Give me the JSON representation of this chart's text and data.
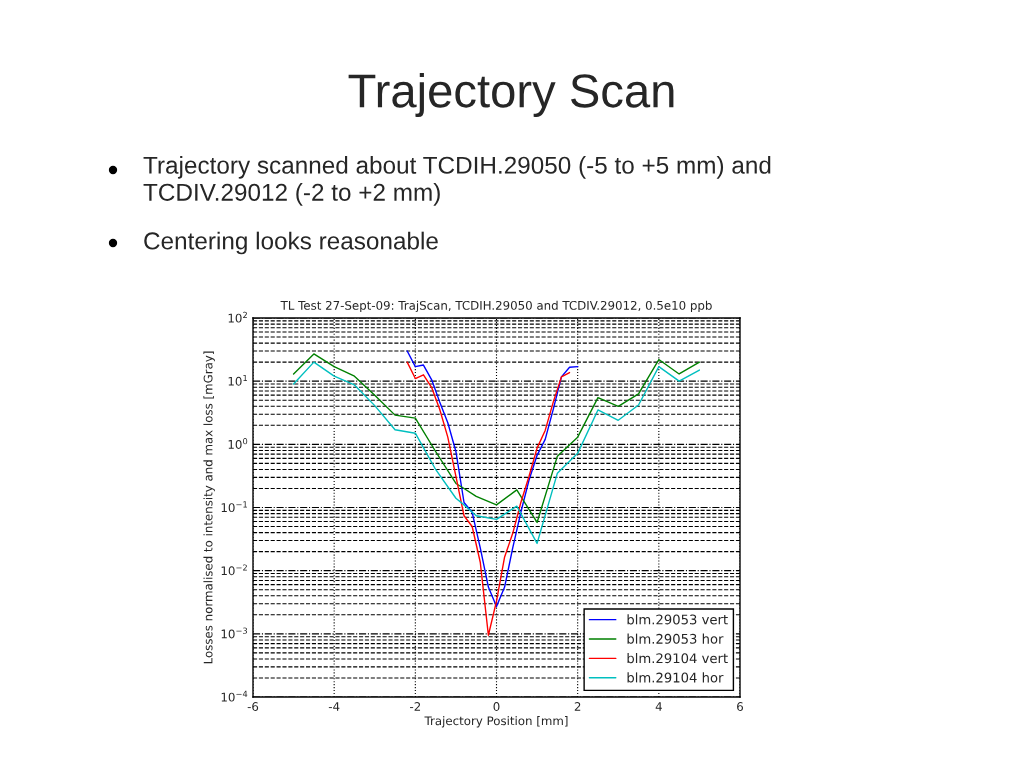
{
  "chart_data": {
    "type": "line",
    "title": "Trajectory Scan",
    "subtitle": "TL Test 27-Sept-09: TrajScan, TCDIH.29050 and TCDIV.29012, 0.5e10 ppb",
    "annotations": [
      "Trajectory scanned about TCDIH.29050 (-5 to +5 mm) and TCDIV.29012 (-2 to +2 mm)",
      "Centering looks reasonable"
    ],
    "xlabel": "Trajectory Position [mm]",
    "ylabel": "Losses normalised to intensity and max loss [mGray]",
    "log": "y",
    "grid": true,
    "legend": "bottom right",
    "marker": "none",
    "line_style": "solid",
    "xlim": [
      -6,
      6
    ],
    "xticks": [
      -6,
      -4,
      -2,
      0,
      2,
      4,
      6
    ],
    "ylim": [
      0.0001,
      100
    ],
    "yticks": [
      {
        "value": 0.0001,
        "label": "10$^{−4}$"
      },
      {
        "value": 0.001,
        "label": "10$^{−3}$"
      },
      {
        "value": 0.01,
        "label": "10$^{−2}$"
      },
      {
        "value": 0.1,
        "label": "10$^{−1}$"
      },
      {
        "value": 1,
        "label": "10$^{0}$"
      },
      {
        "value": 10,
        "label": "10$^{1}$"
      },
      {
        "value": 100,
        "label": "10$^{2}$"
      }
    ],
    "series": [
      {
        "name": "blm.29053 vert",
        "color": "#0000ff",
        "x": [
          -2.2,
          -2.0,
          -1.8,
          -1.6,
          -1.4,
          -1.2,
          -1.0,
          -0.8,
          -0.6,
          -0.4,
          -0.2,
          0.0,
          0.2,
          0.4,
          0.6,
          0.8,
          1.0,
          1.2,
          1.4,
          1.6,
          1.8,
          2.0
        ],
        "values": [
          30,
          17,
          18,
          10.6,
          4.7,
          2.2,
          0.77,
          0.12,
          0.084,
          0.023,
          0.0055,
          0.0027,
          0.0055,
          0.023,
          0.084,
          0.27,
          0.67,
          1.2,
          3.6,
          11.7,
          16.6,
          17
        ]
      },
      {
        "name": "blm.29053 hor",
        "color": "#008000",
        "x": [
          -5,
          -4.5,
          -4,
          -3.5,
          -3,
          -2.5,
          -2,
          -1.5,
          -1,
          -0.8,
          -0.5,
          0,
          0.5,
          1,
          1.5,
          2,
          2.5,
          3,
          3.5,
          4,
          4.5,
          5
        ],
        "values": [
          13,
          27,
          17,
          12,
          6,
          2.9,
          2.6,
          0.77,
          0.24,
          0.2,
          0.15,
          0.11,
          0.19,
          0.058,
          0.65,
          1.3,
          5.5,
          4,
          6.3,
          22,
          13,
          20
        ]
      },
      {
        "name": "blm.29104 vert",
        "color": "#ff0000",
        "x": [
          -2.2,
          -2.0,
          -1.8,
          -1.6,
          -1.4,
          -1.2,
          -1.0,
          -0.8,
          -0.6,
          -0.4,
          -0.2,
          0.0,
          0.2,
          0.4,
          0.6,
          0.8,
          1.0,
          1.2,
          1.4,
          1.6,
          1.8
        ],
        "values": [
          20,
          11,
          12.6,
          8,
          3.6,
          1.3,
          0.31,
          0.074,
          0.05,
          0.0136,
          0.00095,
          0.0033,
          0.0165,
          0.039,
          0.12,
          0.31,
          0.87,
          1.66,
          4.7,
          11.7,
          13.7
        ]
      },
      {
        "name": "blm.29104 hor",
        "color": "#00bfbf",
        "x": [
          -5,
          -4.5,
          -4,
          -3.5,
          -3,
          -2.5,
          -2,
          -1.5,
          -1,
          -0.8,
          -0.5,
          0,
          0.5,
          1,
          1.5,
          2,
          2.5,
          3,
          3.5,
          4,
          4.5,
          5
        ],
        "values": [
          9,
          20,
          12,
          8.7,
          4.1,
          1.7,
          1.5,
          0.4,
          0.14,
          0.11,
          0.074,
          0.065,
          0.105,
          0.027,
          0.35,
          0.72,
          3.5,
          2.4,
          4.2,
          17,
          10,
          15
        ]
      }
    ]
  }
}
